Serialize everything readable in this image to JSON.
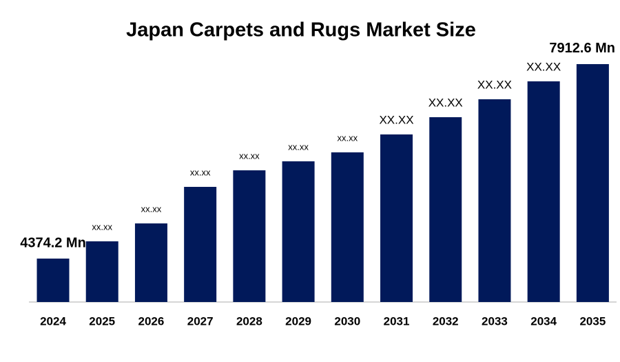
{
  "chart_data": {
    "type": "bar",
    "title": "Japan Carpets and Rugs Market Size",
    "categories": [
      "2024",
      "2025",
      "2026",
      "2027",
      "2028",
      "2029",
      "2030",
      "2031",
      "2032",
      "2033",
      "2034",
      "2035"
    ],
    "values": [
      4374.2,
      4688,
      5014,
      5679,
      5980,
      6144,
      6307,
      6633,
      6947,
      7273,
      7599,
      7912.6
    ],
    "value_labels": [
      "4374.2 Mn",
      "xx.xx",
      "xx.xx",
      "xx.xx",
      "xx.xx",
      "xx.xx",
      "xx.xx",
      "XX.XX",
      "XX.XX",
      "XX.XX",
      "XX.XX",
      "7912.6 Mn"
    ],
    "color": "#01195a",
    "ylim": [
      3584,
      8000
    ]
  }
}
